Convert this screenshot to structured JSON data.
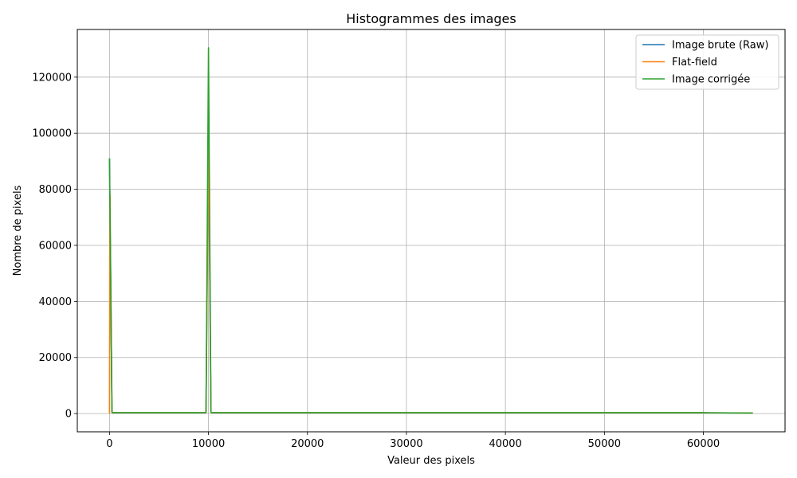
{
  "chart_data": {
    "type": "line",
    "title": "Histogrammes des images",
    "xlabel": "Valeur des pixels",
    "ylabel": "Nombre de pixels",
    "xlim": [
      -3250,
      68250
    ],
    "ylim": [
      -6500,
      137000
    ],
    "xticks": [
      0,
      10000,
      20000,
      30000,
      40000,
      50000,
      60000
    ],
    "yticks": [
      0,
      20000,
      40000,
      60000,
      80000,
      100000,
      120000
    ],
    "grid": true,
    "legend_position": "top-right",
    "series": [
      {
        "name": "Image brute (Raw)",
        "color": "#1f77b4",
        "x": [
          0,
          250,
          300,
          2500,
          5000,
          9700,
          9750,
          10000,
          10250,
          10300,
          15000,
          20000,
          30000,
          40000,
          50000,
          60000,
          65000
        ],
        "y": [
          91000,
          500,
          300,
          300,
          300,
          300,
          500,
          101000,
          500,
          300,
          300,
          300,
          300,
          300,
          300,
          300,
          200
        ]
      },
      {
        "name": "Flat-field",
        "color": "#ff7f0e",
        "x": [
          0,
          50,
          250,
          300,
          2500,
          5000,
          9700,
          9750,
          10000,
          10250,
          10300,
          15000,
          20000,
          30000,
          40000,
          50000,
          60000,
          65000
        ],
        "y": [
          0,
          78000,
          500,
          300,
          300,
          300,
          300,
          500,
          101000,
          500,
          300,
          300,
          300,
          300,
          300,
          300,
          300,
          200
        ]
      },
      {
        "name": "Image corrigée",
        "color": "#2ca02c",
        "x": [
          0,
          250,
          300,
          2500,
          5000,
          9700,
          9750,
          10000,
          10250,
          10300,
          15000,
          20000,
          30000,
          40000,
          50000,
          60000,
          65000
        ],
        "y": [
          91000,
          500,
          300,
          300,
          300,
          300,
          500,
          130500,
          500,
          300,
          300,
          300,
          300,
          300,
          300,
          300,
          200
        ]
      }
    ]
  }
}
